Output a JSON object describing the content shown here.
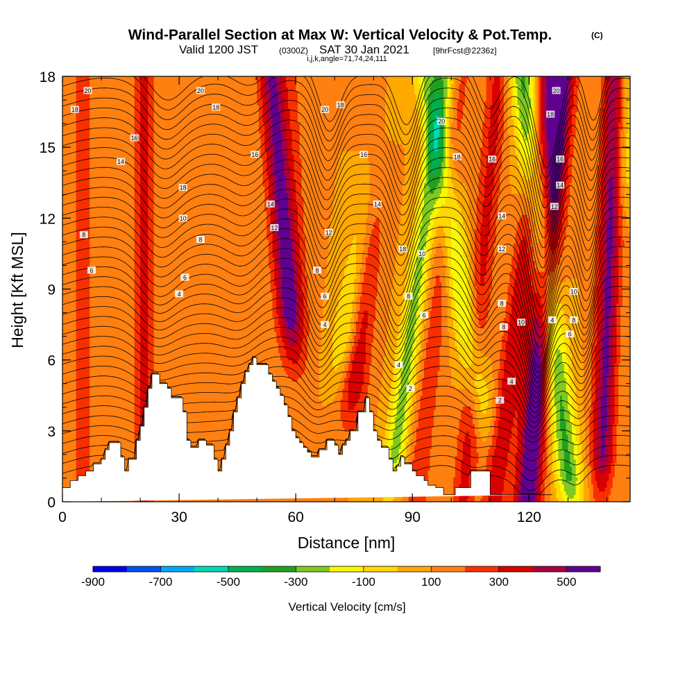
{
  "chart_data": {
    "type": "heatmap",
    "title": "Wind-Parallel Section at Max W: Vertical Velocity & Pot.Temp.",
    "title_mark": "(C)",
    "subtitle_main_a": "Valid 1200 JST",
    "subtitle_utc": "(0300Z)",
    "subtitle_main_b": "SAT 30 Jan 2021",
    "subtitle_fcst": "[9hrFcst@2236z]",
    "subtitle_indices": "i,j,k,angle=71,74,24,111",
    "xlabel": "Distance [nm]",
    "ylabel": "Height [Kft MSL]",
    "xlim": [
      0,
      146
    ],
    "ylim": [
      0,
      18
    ],
    "x_ticks": [
      0,
      30,
      60,
      90,
      120
    ],
    "x_tick_labels": [
      "0",
      "30",
      "60",
      "90",
      "120"
    ],
    "y_ticks": [
      0,
      3,
      6,
      9,
      12,
      15,
      18
    ],
    "y_tick_labels": [
      "0",
      "3",
      "6",
      "9",
      "12",
      "15",
      "18"
    ],
    "colorbar": {
      "label": "Vertical Velocity [cm/s]",
      "colors": [
        "#0000e8",
        "#0050f0",
        "#00a8f8",
        "#00d8b0",
        "#00b050",
        "#20a020",
        "#80c820",
        "#f8f800",
        "#ffd800",
        "#ffa800",
        "#ff8010",
        "#f83000",
        "#d80000",
        "#a80040",
        "#600090"
      ],
      "ticks": [
        -900,
        -700,
        -500,
        -300,
        -100,
        100,
        300,
        500
      ],
      "tick_labels": [
        "-900",
        "-700",
        "-500",
        "-300",
        "-100",
        "100",
        "300",
        "500"
      ]
    },
    "terrain": {
      "x": [
        0,
        2,
        2,
        4,
        4,
        6,
        6,
        8,
        8,
        10,
        10,
        11,
        11,
        12,
        12,
        15,
        15,
        16,
        16,
        17,
        17,
        19,
        19,
        20,
        20,
        21,
        21,
        22,
        22,
        23,
        23,
        25,
        25,
        27,
        27,
        28,
        28,
        31,
        31,
        32,
        32,
        33,
        33,
        35,
        35,
        37,
        37,
        39,
        39,
        40,
        40,
        41,
        41,
        42,
        42,
        43,
        43,
        44,
        44,
        45,
        45,
        46,
        46,
        47,
        47,
        48,
        48,
        49,
        49,
        50,
        50,
        53,
        53,
        54,
        54,
        55,
        55,
        56,
        56,
        57,
        57,
        58,
        58,
        59,
        59,
        60,
        60,
        61,
        61,
        62,
        62,
        63,
        63,
        64,
        64,
        66,
        66,
        68,
        68,
        70,
        70,
        71,
        71,
        72,
        72,
        73,
        73,
        74,
        74,
        76,
        76,
        78,
        78,
        79,
        79,
        80,
        80,
        81,
        81,
        82,
        82,
        84,
        84,
        85,
        85,
        86,
        86,
        87,
        87,
        88,
        88,
        90,
        90,
        91,
        91,
        93,
        93,
        94,
        94,
        96,
        96,
        98,
        98,
        101,
        101,
        105,
        105,
        110,
        110,
        126,
        126,
        128,
        128,
        130,
        130,
        131,
        131,
        146
      ],
      "h": [
        0.6,
        0.6,
        0.9,
        0.9,
        1.1,
        1.1,
        1.3,
        1.3,
        1.6,
        1.6,
        1.8,
        1.8,
        2.2,
        2.2,
        2.5,
        2.5,
        1.9,
        1.9,
        1.3,
        1.3,
        1.8,
        1.8,
        2.6,
        2.6,
        3.2,
        3.2,
        4.0,
        4.0,
        4.8,
        4.8,
        5.4,
        5.4,
        5.0,
        5.0,
        4.8,
        4.8,
        4.4,
        4.4,
        3.8,
        3.8,
        2.6,
        2.6,
        2.3,
        2.3,
        2.6,
        2.6,
        2.4,
        2.4,
        1.8,
        1.8,
        1.3,
        1.3,
        1.8,
        1.8,
        2.4,
        2.4,
        3.0,
        3.0,
        3.8,
        3.8,
        4.4,
        4.4,
        5.0,
        5.0,
        5.5,
        5.5,
        5.8,
        5.8,
        6.1,
        6.1,
        5.8,
        5.8,
        5.4,
        5.4,
        5.1,
        5.1,
        4.8,
        4.8,
        4.5,
        4.5,
        4.1,
        4.1,
        3.6,
        3.6,
        3.0,
        3.0,
        2.7,
        2.7,
        2.5,
        2.5,
        2.3,
        2.3,
        2.1,
        2.1,
        1.9,
        1.9,
        2.2,
        2.2,
        2.6,
        2.6,
        2.4,
        2.4,
        2.0,
        2.0,
        2.4,
        2.4,
        2.6,
        2.6,
        3.0,
        3.0,
        3.8,
        3.8,
        4.4,
        4.4,
        3.8,
        3.8,
        3.0,
        3.0,
        2.6,
        2.6,
        2.3,
        2.3,
        1.8,
        1.8,
        1.3,
        1.3,
        1.5,
        1.5,
        1.9,
        1.9,
        1.6,
        1.6,
        1.3,
        1.3,
        1.1,
        1.1,
        0.9,
        0.9,
        0.7,
        0.7,
        0.6,
        0.6,
        0.3,
        0.3,
        0.6,
        0.6,
        1.3,
        1.3,
        0.3,
        0.3
      ]
    },
    "w_features": [
      {
        "x0": 5,
        "slope": 0,
        "w": 4,
        "amp": 120
      },
      {
        "x0": 13,
        "slope": 0,
        "w": 3,
        "amp": 90
      },
      {
        "x0": 21,
        "slope": 0,
        "w": 3,
        "amp": 220
      },
      {
        "x0": 37,
        "slope": 0,
        "w": 5,
        "amp": 90
      },
      {
        "x0": 60,
        "slope": 0,
        "w": 4,
        "amp": 80
      },
      {
        "x0": 62,
        "slope": -0.45,
        "w": 3.5,
        "amp": 420,
        "zmin": 8
      },
      {
        "x0": 72,
        "slope": 0.6,
        "w": 3.5,
        "amp": 320,
        "zmin": 5
      },
      {
        "x0": 66,
        "slope": 1.0,
        "w": 3.5,
        "amp": -300,
        "zmin": 7
      },
      {
        "x0": 84,
        "slope": 0.8,
        "w": 3,
        "amp": -350,
        "zmin": 2
      },
      {
        "x0": 91,
        "slope": 0.6,
        "w": 3.5,
        "amp": 160
      },
      {
        "x0": 103,
        "slope": 0.5,
        "w": 3,
        "amp": 230
      },
      {
        "x0": 111,
        "slope": 0.75,
        "w": 3,
        "amp": 280
      },
      {
        "x0": 111,
        "slope": -0.95,
        "w": 3.5,
        "amp": -320,
        "zmin": 5
      },
      {
        "x0": 119.5,
        "slope": 0.5,
        "w": 3.5,
        "amp": 520
      },
      {
        "x0": 131,
        "slope": -0.7,
        "w": 3.5,
        "amp": -420,
        "zmin": 1
      },
      {
        "x0": 138.5,
        "slope": 0.2,
        "w": 3,
        "amp": 420,
        "zmin": 2
      },
      {
        "x0": 145,
        "slope": 0,
        "w": 2.5,
        "amp": -200,
        "zmin": 14
      }
    ],
    "theta_contours": {
      "levels": [
        2,
        4,
        6,
        8,
        10,
        12,
        14,
        16,
        18,
        20
      ],
      "labels": [
        {
          "text": "20",
          "x": 6.5,
          "y": 17.4
        },
        {
          "text": "18",
          "x": 3.2,
          "y": 16.6
        },
        {
          "text": "16",
          "x": 18.5,
          "y": 15.4
        },
        {
          "text": "14",
          "x": 15,
          "y": 14.4
        },
        {
          "text": "20",
          "x": 35.5,
          "y": 17.4
        },
        {
          "text": "18",
          "x": 39.5,
          "y": 16.7
        },
        {
          "text": "18",
          "x": 31,
          "y": 13.3
        },
        {
          "text": "10",
          "x": 31,
          "y": 12.0
        },
        {
          "text": "8",
          "x": 35.5,
          "y": 11.1
        },
        {
          "text": "8",
          "x": 5.5,
          "y": 11.3
        },
        {
          "text": "6",
          "x": 7.5,
          "y": 9.8
        },
        {
          "text": "6",
          "x": 31.5,
          "y": 9.5
        },
        {
          "text": "4",
          "x": 30,
          "y": 8.8
        },
        {
          "text": "16",
          "x": 49.5,
          "y": 14.7
        },
        {
          "text": "14",
          "x": 53.5,
          "y": 12.6
        },
        {
          "text": "12",
          "x": 54.5,
          "y": 11.6
        },
        {
          "text": "20",
          "x": 67.5,
          "y": 16.6
        },
        {
          "text": "18",
          "x": 71.5,
          "y": 16.8
        },
        {
          "text": "16",
          "x": 77.5,
          "y": 14.7
        },
        {
          "text": "14",
          "x": 81,
          "y": 12.6
        },
        {
          "text": "12",
          "x": 68.5,
          "y": 11.4
        },
        {
          "text": "8",
          "x": 65.5,
          "y": 9.8
        },
        {
          "text": "6",
          "x": 67.5,
          "y": 8.7
        },
        {
          "text": "4",
          "x": 67.5,
          "y": 7.5
        },
        {
          "text": "20",
          "x": 97.5,
          "y": 16.1
        },
        {
          "text": "18",
          "x": 101.5,
          "y": 14.6
        },
        {
          "text": "18",
          "x": 87.5,
          "y": 10.7
        },
        {
          "text": "10",
          "x": 92.5,
          "y": 10.5
        },
        {
          "text": "8",
          "x": 89,
          "y": 8.7
        },
        {
          "text": "6",
          "x": 93,
          "y": 7.9
        },
        {
          "text": "4",
          "x": 86.5,
          "y": 5.8
        },
        {
          "text": "2",
          "x": 89.5,
          "y": 4.8
        },
        {
          "text": "16",
          "x": 110.5,
          "y": 14.5
        },
        {
          "text": "14",
          "x": 113,
          "y": 12.1
        },
        {
          "text": "12",
          "x": 113,
          "y": 10.7
        },
        {
          "text": "8",
          "x": 113,
          "y": 8.4
        },
        {
          "text": "8",
          "x": 113.5,
          "y": 7.4
        },
        {
          "text": "10",
          "x": 118,
          "y": 7.6
        },
        {
          "text": "4",
          "x": 115.5,
          "y": 5.1
        },
        {
          "text": "2",
          "x": 112.5,
          "y": 4.3
        },
        {
          "text": "20",
          "x": 127,
          "y": 17.4
        },
        {
          "text": "18",
          "x": 125.5,
          "y": 16.4
        },
        {
          "text": "16",
          "x": 128,
          "y": 14.5
        },
        {
          "text": "14",
          "x": 128,
          "y": 13.4
        },
        {
          "text": "12",
          "x": 126.5,
          "y": 12.5
        },
        {
          "text": "10",
          "x": 131.5,
          "y": 8.9
        },
        {
          "text": "8",
          "x": 131.5,
          "y": 7.7
        },
        {
          "text": "4",
          "x": 126,
          "y": 7.7
        },
        {
          "text": "6",
          "x": 130.5,
          "y": 7.1
        }
      ]
    }
  }
}
